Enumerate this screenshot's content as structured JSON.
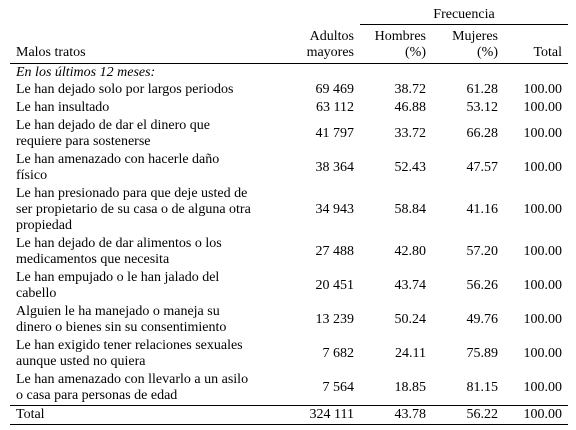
{
  "cut_header_text": "",
  "header": {
    "frecuencia": "Frecuencia",
    "col_malos": "Malos tratos",
    "col_adultos": "Adultos mayores",
    "col_adultos_lines": [
      "Adultos",
      "mayores"
    ],
    "col_hombres_lines": [
      "Hombres",
      "(%)"
    ],
    "col_mujeres_lines": [
      "Mujeres",
      "(%)"
    ],
    "col_total": "Total"
  },
  "subheader": "En los últimos 12 meses:",
  "rows": [
    {
      "label": [
        "Le han dejado solo por largos periodos"
      ],
      "adultos": "69 469",
      "hombres": "38.72",
      "mujeres": "61.28",
      "total": "100.00"
    },
    {
      "label": [
        "Le han insultado"
      ],
      "adultos": "63 112",
      "hombres": "46.88",
      "mujeres": "53.12",
      "total": "100.00"
    },
    {
      "label": [
        "Le han dejado de dar el dinero que",
        "requiere para sostenerse"
      ],
      "adultos": "41 797",
      "hombres": "33.72",
      "mujeres": "66.28",
      "total": "100.00"
    },
    {
      "label": [
        "Le han amenazado con hacerle daño",
        "físico"
      ],
      "adultos": "38 364",
      "hombres": "52.43",
      "mujeres": "47.57",
      "total": "100.00"
    },
    {
      "label": [
        "Le han presionado para que deje usted de",
        "ser propietario de su casa o de alguna otra",
        "propiedad"
      ],
      "adultos": "34 943",
      "hombres": "58.84",
      "mujeres": "41.16",
      "total": "100.00"
    },
    {
      "label": [
        "Le han dejado de dar alimentos o los",
        "medicamentos que necesita"
      ],
      "adultos": "27 488",
      "hombres": "42.80",
      "mujeres": "57.20",
      "total": "100.00"
    },
    {
      "label": [
        "Le han empujado o le han jalado del",
        "cabello"
      ],
      "adultos": "20 451",
      "hombres": "43.74",
      "mujeres": "56.26",
      "total": "100.00"
    },
    {
      "label": [
        "Alguien le ha manejado o maneja su",
        "dinero o bienes sin su consentimiento"
      ],
      "adultos": "13 239",
      "hombres": "50.24",
      "mujeres": "49.76",
      "total": "100.00"
    },
    {
      "label": [
        "Le han exigido tener relaciones sexuales",
        "aunque usted no quiera"
      ],
      "adultos": "7 682",
      "hombres": "24.11",
      "mujeres": "75.89",
      "total": "100.00"
    },
    {
      "label": [
        "Le han amenazado con llevarlo a un asilo",
        "o casa para personas de edad"
      ],
      "adultos": "7 564",
      "hombres": "18.85",
      "mujeres": "81.15",
      "total": "100.00"
    }
  ],
  "total": {
    "label": "Total",
    "adultos": "324 111",
    "hombres": "43.78",
    "mujeres": "56.22",
    "total": "100.00"
  }
}
